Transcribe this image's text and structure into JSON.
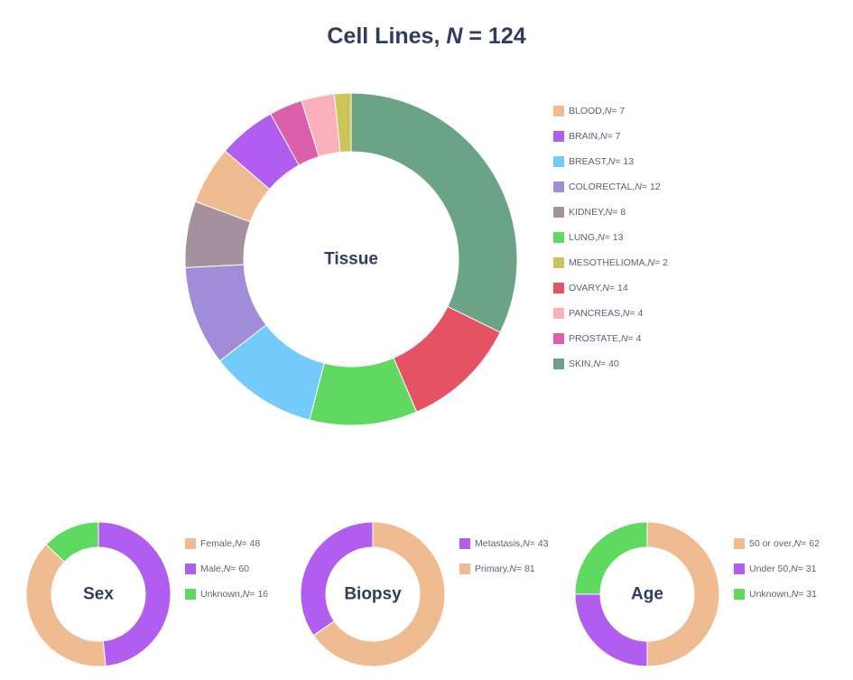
{
  "title": {
    "prefix": "Cell Lines, ",
    "n": "N",
    "suffix": " = 124"
  },
  "n_symbol": "N",
  "chart_data": [
    {
      "type": "pie",
      "subtype": "donut",
      "center_label": "Tissue",
      "slices": [
        {
          "name": "BLOOD",
          "value": 7,
          "color": "#efbb91"
        },
        {
          "name": "BRAIN",
          "value": 7,
          "color": "#b15ef0"
        },
        {
          "name": "BREAST",
          "value": 13,
          "color": "#72cbfb"
        },
        {
          "name": "COLORECTAL",
          "value": 12,
          "color": "#a08cd9"
        },
        {
          "name": "KIDNEY",
          "value": 8,
          "color": "#a5919d"
        },
        {
          "name": "LUNG",
          "value": 13,
          "color": "#5fd95f"
        },
        {
          "name": "MESOTHELIOMA",
          "value": 2,
          "color": "#cbc55c"
        },
        {
          "name": "OVARY",
          "value": 14,
          "color": "#e55263"
        },
        {
          "name": "PANCREAS",
          "value": 4,
          "color": "#fcb0bb"
        },
        {
          "name": "PROSTATE",
          "value": 4,
          "color": "#dc5fab"
        },
        {
          "name": "SKIN",
          "value": 40,
          "color": "#6ba386"
        }
      ],
      "draw_order": [
        "SKIN",
        "OVARY",
        "LUNG",
        "BREAST",
        "COLORECTAL",
        "KIDNEY",
        "BLOOD",
        "BRAIN",
        "PROSTATE",
        "PANCREAS",
        "MESOTHELIOMA"
      ]
    },
    {
      "type": "pie",
      "subtype": "donut",
      "center_label": "Sex",
      "slices": [
        {
          "name": "Female",
          "value": 48,
          "color": "#efbb91"
        },
        {
          "name": "Male",
          "value": 60,
          "color": "#b15ef0"
        },
        {
          "name": "Unknown",
          "value": 16,
          "color": "#5fd95f"
        }
      ],
      "draw_order": [
        "Male",
        "Female",
        "Unknown"
      ]
    },
    {
      "type": "pie",
      "subtype": "donut",
      "center_label": "Biopsy",
      "slices": [
        {
          "name": "Metastasis",
          "value": 43,
          "color": "#b15ef0"
        },
        {
          "name": "Primary",
          "value": 81,
          "color": "#efbb91"
        }
      ],
      "draw_order": [
        "Primary",
        "Metastasis"
      ]
    },
    {
      "type": "pie",
      "subtype": "donut",
      "center_label": "Age",
      "slices": [
        {
          "name": "50 or over",
          "value": 62,
          "color": "#efbb91"
        },
        {
          "name": "Under 50",
          "value": 31,
          "color": "#b15ef0"
        },
        {
          "name": "Unknown",
          "value": 31,
          "color": "#5fd95f"
        }
      ],
      "draw_order": [
        "50 or over",
        "Under 50",
        "Unknown"
      ]
    }
  ]
}
